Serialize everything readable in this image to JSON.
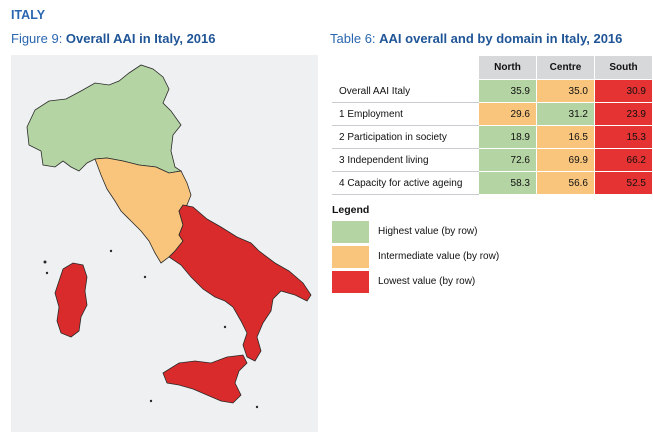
{
  "header": {
    "country": "ITALY",
    "figure_prefix": "Figure 9: ",
    "figure_title": "Overall AAI in Italy, 2016",
    "table_prefix": "Table 6: ",
    "table_title": "AAI overall and by domain in Italy, 2016"
  },
  "colors": {
    "highest": "#b5d4a3",
    "intermediate": "#f9c57d",
    "lowest": "#e53232",
    "title_blue": "#2a66b0"
  },
  "map": {
    "regions": [
      {
        "name": "North",
        "level": "highest"
      },
      {
        "name": "Centre",
        "level": "intermediate"
      },
      {
        "name": "South",
        "level": "lowest"
      }
    ]
  },
  "table": {
    "columns": [
      "North",
      "Centre",
      "South"
    ],
    "rows": [
      {
        "label": "Overall AAI Italy",
        "values": [
          "35.9",
          "35.0",
          "30.9"
        ],
        "levels": [
          "highest",
          "intermediate",
          "lowest"
        ]
      },
      {
        "label": "1 Employment",
        "values": [
          "29.6",
          "31.2",
          "23.9"
        ],
        "levels": [
          "intermediate",
          "highest",
          "lowest"
        ]
      },
      {
        "label": "2 Participation in society",
        "values": [
          "18.9",
          "16.5",
          "15.3"
        ],
        "levels": [
          "highest",
          "intermediate",
          "lowest"
        ]
      },
      {
        "label": "3 Independent living",
        "values": [
          "72.6",
          "69.9",
          "66.2"
        ],
        "levels": [
          "highest",
          "intermediate",
          "lowest"
        ]
      },
      {
        "label": "4 Capacity for active ageing",
        "values": [
          "58.3",
          "56.6",
          "52.5"
        ],
        "levels": [
          "highest",
          "intermediate",
          "lowest"
        ]
      }
    ]
  },
  "legend": {
    "title": "Legend",
    "items": [
      {
        "label": "Highest value (by row)",
        "level": "highest"
      },
      {
        "label": "Intermediate value (by row)",
        "level": "intermediate"
      },
      {
        "label": "Lowest value (by row)",
        "level": "lowest"
      }
    ]
  }
}
